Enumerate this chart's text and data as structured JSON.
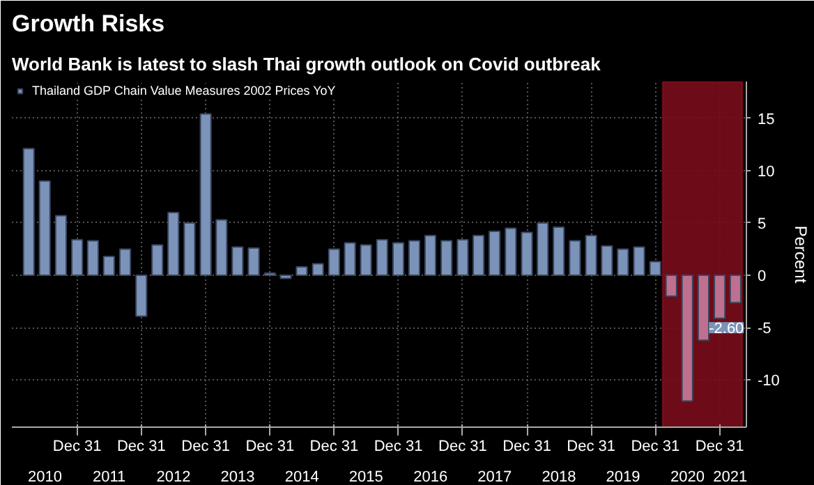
{
  "chart_data": {
    "type": "bar",
    "title": "Growth Risks",
    "subtitle": "World Bank is latest to slash Thai growth outlook on Covid outbreak",
    "x": [
      "2010-03-31",
      "2010-06-30",
      "2010-09-30",
      "2010-12-31",
      "2011-03-31",
      "2011-06-30",
      "2011-09-30",
      "2011-12-31",
      "2012-03-31",
      "2012-06-30",
      "2012-09-30",
      "2012-12-31",
      "2013-03-31",
      "2013-06-30",
      "2013-09-30",
      "2013-12-31",
      "2014-03-31",
      "2014-06-30",
      "2014-09-30",
      "2014-12-31",
      "2015-03-31",
      "2015-06-30",
      "2015-09-30",
      "2015-12-31",
      "2016-03-31",
      "2016-06-30",
      "2016-09-30",
      "2016-12-31",
      "2017-03-31",
      "2017-06-30",
      "2017-09-30",
      "2017-12-31",
      "2018-03-31",
      "2018-06-30",
      "2018-09-30",
      "2018-12-31",
      "2019-03-31",
      "2019-06-30",
      "2019-09-30",
      "2019-12-31",
      "2020-03-31",
      "2020-06-30",
      "2020-09-30",
      "2020-12-31",
      "2021-03-31"
    ],
    "series": [
      {
        "name": "Thailand GDP Chain Value Measures 2002 Prices YoY",
        "color": "#7b93b8",
        "colors": [
          "#7b93b8",
          "#7b93b8",
          "#7b93b8",
          "#7b93b8",
          "#7b93b8",
          "#7b93b8",
          "#7b93b8",
          "#7b93b8",
          "#7b93b8",
          "#7b93b8",
          "#7b93b8",
          "#7b93b8",
          "#7b93b8",
          "#7b93b8",
          "#7b93b8",
          "#7b93b8",
          "#7b93b8",
          "#7b93b8",
          "#7b93b8",
          "#7b93b8",
          "#7b93b8",
          "#7b93b8",
          "#7b93b8",
          "#7b93b8",
          "#7b93b8",
          "#7b93b8",
          "#7b93b8",
          "#7b93b8",
          "#7b93b8",
          "#7b93b8",
          "#7b93b8",
          "#7b93b8",
          "#7b93b8",
          "#7b93b8",
          "#7b93b8",
          "#7b93b8",
          "#7b93b8",
          "#7b93b8",
          "#7b93b8",
          "#7b93b8",
          "#c0708f",
          "#c0708f",
          "#c0708f",
          "#c0708f",
          "#c0708f"
        ],
        "values": [
          12.1,
          9.0,
          5.7,
          3.4,
          3.3,
          1.8,
          2.5,
          -3.9,
          2.9,
          6.0,
          5.0,
          15.4,
          5.3,
          2.7,
          2.6,
          0.2,
          -0.3,
          0.8,
          1.1,
          2.5,
          3.1,
          2.9,
          3.4,
          3.1,
          3.3,
          3.8,
          3.3,
          3.4,
          3.8,
          4.2,
          4.5,
          4.1,
          5.0,
          4.6,
          3.3,
          3.8,
          2.8,
          2.5,
          2.7,
          1.3,
          -2.0,
          -12.0,
          -6.2,
          -4.1,
          -2.6
        ],
        "value_labels": [
          null,
          null,
          null,
          null,
          null,
          null,
          null,
          null,
          null,
          null,
          null,
          null,
          null,
          null,
          null,
          null,
          null,
          null,
          null,
          null,
          null,
          null,
          null,
          null,
          null,
          null,
          null,
          null,
          null,
          null,
          null,
          null,
          null,
          null,
          null,
          null,
          null,
          null,
          null,
          null,
          null,
          null,
          null,
          null,
          "-2.60"
        ]
      }
    ],
    "ylabel": "Percent",
    "ylim": [
      -14.5,
      18.5
    ],
    "yticks": [
      -10,
      -5,
      0,
      5,
      10,
      15
    ],
    "xlim": [
      "2009-12-25",
      "2021-06-01"
    ],
    "xticks": [
      {
        "value": "2010-12-31",
        "label": "Dec 31"
      },
      {
        "value": "2011-12-31",
        "label": "Dec 31"
      },
      {
        "value": "2012-12-31",
        "label": "Dec 31"
      },
      {
        "value": "2013-12-31",
        "label": "Dec 31"
      },
      {
        "value": "2014-12-31",
        "label": "Dec 31"
      },
      {
        "value": "2015-12-31",
        "label": "Dec 31"
      },
      {
        "value": "2016-12-31",
        "label": "Dec 31"
      },
      {
        "value": "2017-12-31",
        "label": "Dec 31"
      },
      {
        "value": "2018-12-31",
        "label": "Dec 31"
      },
      {
        "value": "2019-12-31",
        "label": "Dec 31"
      },
      {
        "value": "2020-12-31",
        "label": "Dec 31"
      }
    ],
    "x2lim": [
      "2009-12-25",
      "2021-06-01"
    ],
    "x2ticks": [
      {
        "value": "2010-07-01",
        "label": "2010"
      },
      {
        "value": "2011-07-01",
        "label": "2011"
      },
      {
        "value": "2012-07-01",
        "label": "2012"
      },
      {
        "value": "2013-07-01",
        "label": "2013"
      },
      {
        "value": "2014-07-01",
        "label": "2014"
      },
      {
        "value": "2015-07-01",
        "label": "2015"
      },
      {
        "value": "2016-07-01",
        "label": "2016"
      },
      {
        "value": "2017-07-01",
        "label": "2017"
      },
      {
        "value": "2018-07-01",
        "label": "2018"
      },
      {
        "value": "2019-07-01",
        "label": "2019"
      },
      {
        "value": "2020-07-01",
        "label": "2020"
      },
      {
        "value": "2021-03-01",
        "label": "2021"
      }
    ],
    "bands": [
      {
        "axis": "x",
        "from": "2020-02-10",
        "to": "2021-05-10",
        "color": "#7a0c1c"
      }
    ],
    "grid": true,
    "legend": "top left"
  }
}
